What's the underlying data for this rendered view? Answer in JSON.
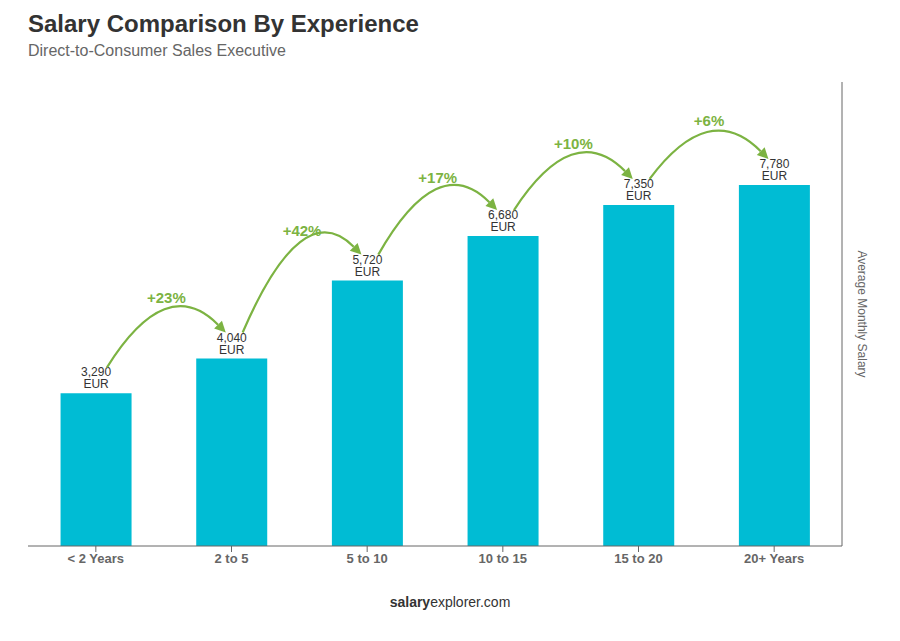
{
  "chart_data": {
    "type": "bar",
    "title": "Salary Comparison By Experience",
    "subtitle": "Direct-to-Consumer Sales Executive",
    "ylabel": "Average Monthly Salary",
    "categories": [
      "< 2 Years",
      "2 to 5",
      "5 to 10",
      "10 to 15",
      "15 to 20",
      "20+ Years"
    ],
    "values": [
      3290,
      4040,
      5720,
      6680,
      7350,
      7780
    ],
    "value_labels": [
      "3,290 EUR",
      "4,040 EUR",
      "5,720 EUR",
      "6,680 EUR",
      "7,350 EUR",
      "7,780 EUR"
    ],
    "data_labels": true,
    "color": "#00bcd4",
    "ylim": [
      0,
      10000
    ],
    "tick_labels": "x",
    "grid": false,
    "annotations": [
      {
        "text": "+23%",
        "from": "< 2 Years",
        "to": "2 to 5",
        "color": "#7cb342"
      },
      {
        "text": "+42%",
        "from": "2 to 5",
        "to": "5 to 10",
        "color": "#7cb342"
      },
      {
        "text": "+17%",
        "from": "5 to 10",
        "to": "10 to 15",
        "color": "#7cb342"
      },
      {
        "text": "+10%",
        "from": "10 to 15",
        "to": "15 to 20",
        "color": "#7cb342"
      },
      {
        "text": "+6%",
        "from": "15 to 20",
        "to": "20+ Years",
        "color": "#7cb342"
      }
    ],
    "watermark": [
      "salary",
      "explorer.com"
    ]
  }
}
